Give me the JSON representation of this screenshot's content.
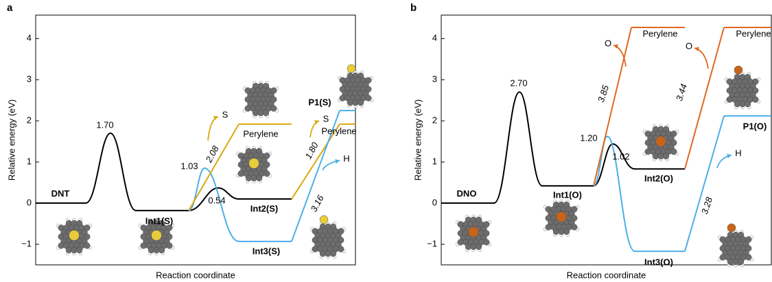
{
  "chart_data": [
    {
      "type": "energy",
      "panel": "a",
      "ylabel": "Relative energy (eV)",
      "xlabel": "Reaction coordinate",
      "ylim": [
        -1.5,
        4.57
      ],
      "yticks": [
        {
          "value": -1,
          "label": "−1"
        },
        0,
        1,
        2,
        3,
        4
      ],
      "levels": [
        0,
        -0.18,
        0.1,
        -0.93,
        1.92,
        1.92,
        2.25
      ],
      "level_labels": [
        "DNT",
        "Int1(S)",
        "Int2(S)",
        "Int3(S)",
        "Perylene",
        "Perylene",
        "P1(S)"
      ],
      "level_colors": [
        "#000000",
        "#000000",
        "#000000",
        "#4aaee8",
        "#d8a910",
        "#d8a910",
        "#4aaee8"
      ],
      "peaks": [
        1.7,
        0.37,
        0.85
      ],
      "peak_colors": [
        "#000000",
        "#000000",
        "#4aaee8"
      ],
      "barrier_labels": [
        "1.70",
        "0.54",
        "1.03",
        "2.08",
        "1.80",
        "3.16"
      ],
      "released_labels": [
        "S",
        "S",
        "H"
      ]
    },
    {
      "type": "energy",
      "panel": "b",
      "ylabel": "Relative energy (eV)",
      "xlabel": "Reaction coordinate",
      "ylim": [
        -1.5,
        4.57
      ],
      "yticks": [
        {
          "value": -1,
          "label": "−1"
        },
        0,
        1,
        2,
        3,
        4
      ],
      "levels": [
        0,
        0.42,
        0.83,
        -1.17,
        4.27,
        4.27,
        2.12
      ],
      "level_labels": [
        "DNO",
        "Int1(O)",
        "Int2(O)",
        "Int3(O)",
        "Perylene",
        "Perylene",
        "P1(O)"
      ],
      "level_colors": [
        "#000000",
        "#000000",
        "#000000",
        "#4aaee8",
        "#e0671d",
        "#e0671d",
        "#4aaee8"
      ],
      "peaks": [
        2.7,
        1.44,
        1.62
      ],
      "peak_colors": [
        "#000000",
        "#000000",
        "#4aaee8"
      ],
      "barrier_labels": [
        "2.70",
        "1.02",
        "1.20",
        "3.85",
        "3.44",
        "3.28"
      ],
      "released_labels": [
        "O",
        "O",
        "H"
      ]
    }
  ]
}
